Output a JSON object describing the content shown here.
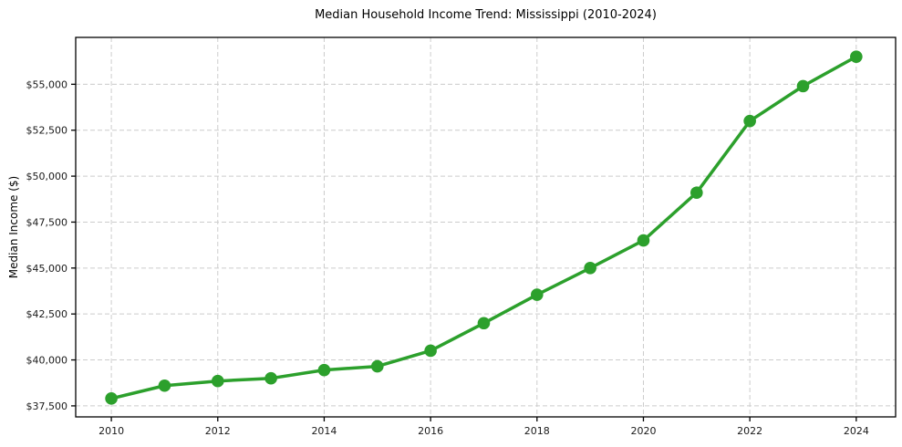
{
  "chart_data": {
    "type": "line",
    "title": "Median Household Income Trend: Mississippi (2010-2024)",
    "xlabel": "",
    "ylabel": "Median Income ($)",
    "legend": "none",
    "grid": true,
    "series": [
      {
        "name": "Median household income",
        "x": [
          2010,
          2011,
          2012,
          2013,
          2014,
          2015,
          2016,
          2017,
          2018,
          2019,
          2020,
          2021,
          2022,
          2023,
          2024
        ],
        "y": [
          37900,
          38600,
          38850,
          39000,
          39450,
          39650,
          40500,
          42000,
          43550,
          45000,
          46500,
          49100,
          53000,
          54900,
          56500
        ]
      }
    ],
    "xticks": {
      "values": [
        2010,
        2012,
        2014,
        2016,
        2018,
        2020,
        2022,
        2024
      ],
      "labels": [
        "2010",
        "2012",
        "2014",
        "2016",
        "2018",
        "2020",
        "2022",
        "2024"
      ]
    },
    "yticks": {
      "values": [
        37500,
        40000,
        42500,
        45000,
        47500,
        50000,
        52500,
        55000
      ],
      "labels": [
        "$37,500",
        "$40,000",
        "$42,500",
        "$45,000",
        "$47,500",
        "$50,000",
        "$52,500",
        "$55,000"
      ]
    },
    "xlim": [
      2009.33,
      2024.74
    ],
    "ylim": [
      36900,
      57550
    ],
    "style": {
      "line_color": "#2ca02c",
      "marker": "circle",
      "marker_color": "#2ca02c",
      "grid_color": "#cccccc",
      "axis_color": "#000000",
      "tick_label_color": "#1a1a1a",
      "background": "#ffffff"
    }
  }
}
